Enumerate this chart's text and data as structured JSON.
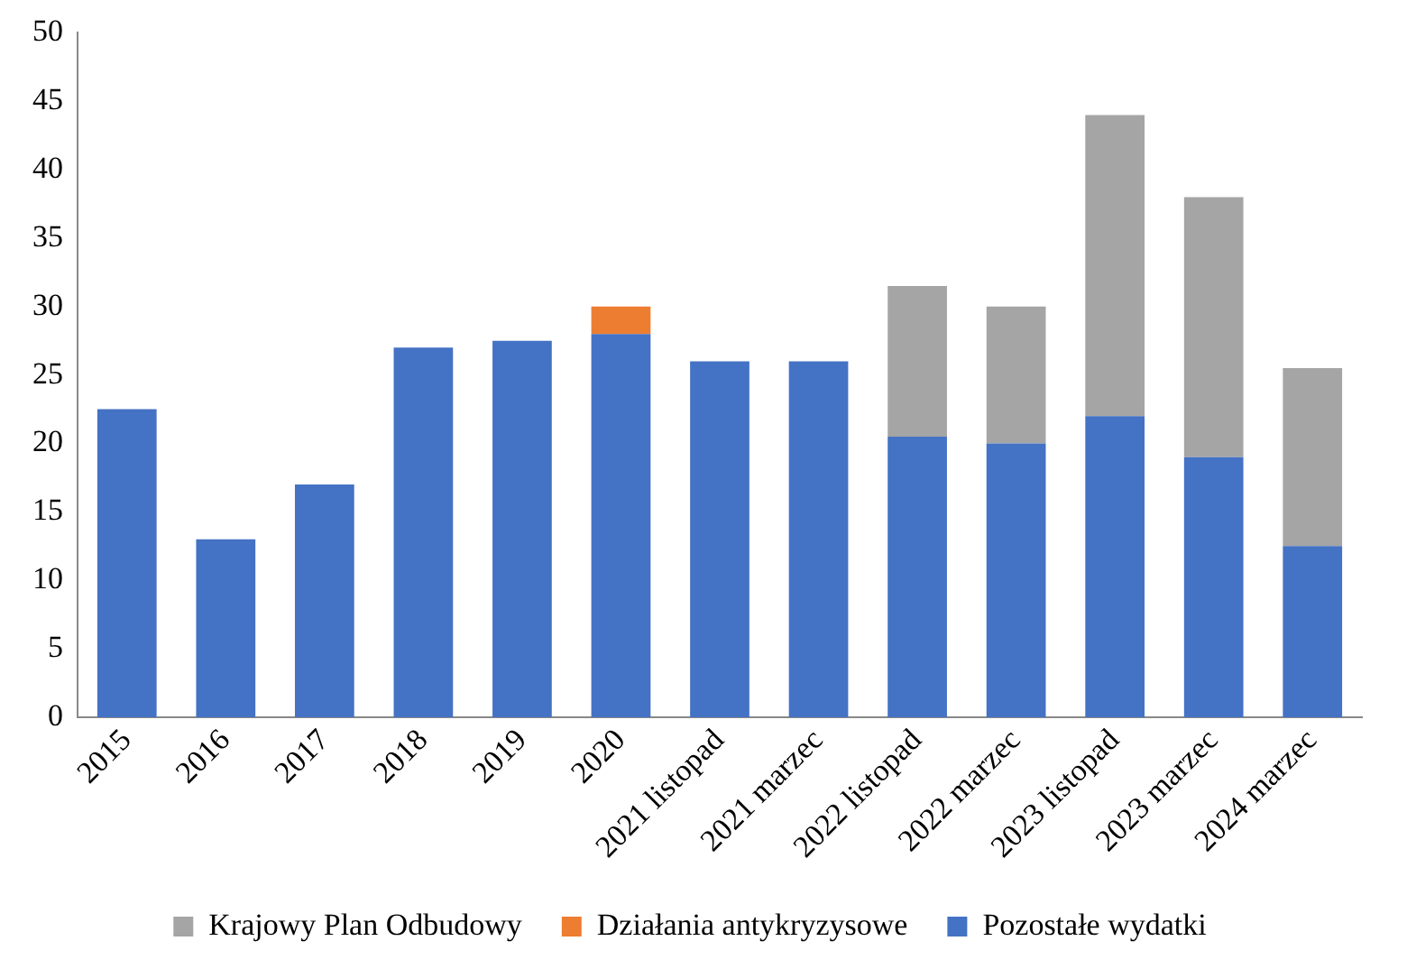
{
  "chart_data": {
    "type": "bar",
    "stacked": true,
    "categories": [
      "2015",
      "2016",
      "2017",
      "2018",
      "2019",
      "2020",
      "2021 listopad",
      "2021 marzec",
      "2022 listopad",
      "2022 marzec",
      "2023 listopad",
      "2023 marzec",
      "2024 marzec"
    ],
    "series": [
      {
        "name": "Pozostałe wydatki",
        "color": "#4472c4",
        "values": [
          22.5,
          13,
          17,
          27,
          27.5,
          28,
          26,
          26,
          20.5,
          20,
          22,
          19,
          12.5
        ]
      },
      {
        "name": "Działania antykryzysowe",
        "color": "#ed7d31",
        "values": [
          null,
          null,
          null,
          null,
          null,
          2,
          null,
          null,
          null,
          null,
          null,
          null,
          null
        ]
      },
      {
        "name": "Krajowy Plan Odbudowy",
        "color": "#a5a5a5",
        "values": [
          null,
          null,
          null,
          null,
          null,
          null,
          null,
          null,
          11,
          10,
          22,
          19,
          13
        ]
      }
    ],
    "ylim": [
      0,
      50
    ],
    "yticks": [
      0,
      5,
      10,
      15,
      20,
      25,
      30,
      35,
      40,
      45,
      50
    ],
    "grid": false,
    "legend": "bottom"
  }
}
